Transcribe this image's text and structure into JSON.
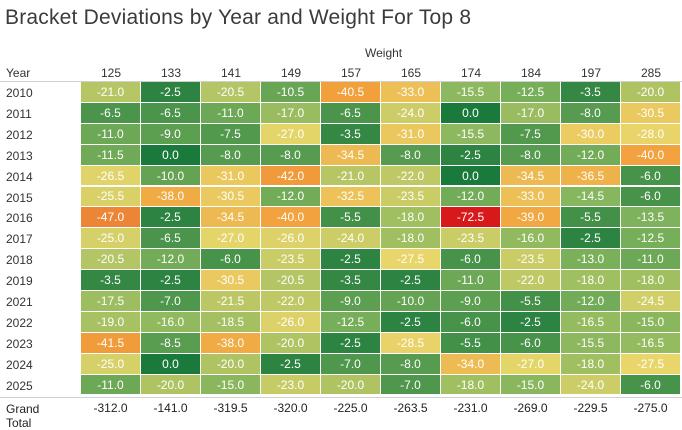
{
  "chart_data": {
    "type": "heatmap",
    "title": "Bracket Deviations by Year and Weight For Top 8",
    "column_group_label": "Weight",
    "row_label": "Year",
    "columns": [
      "125",
      "133",
      "141",
      "149",
      "157",
      "165",
      "174",
      "184",
      "197",
      "285"
    ],
    "rows": [
      "2010",
      "2011",
      "2012",
      "2013",
      "2014",
      "2015",
      "2016",
      "2017",
      "2018",
      "2019",
      "2021",
      "2022",
      "2023",
      "2024",
      "2025"
    ],
    "values": [
      [
        "-21.0",
        "-2.5",
        "-20.5",
        "-10.5",
        "-40.5",
        "-33.0",
        "-15.5",
        "-12.5",
        "-3.5",
        "-20.0"
      ],
      [
        "-6.5",
        "-6.5",
        "-11.0",
        "-17.0",
        "-6.5",
        "-24.0",
        "0.0",
        "-17.0",
        "-8.0",
        "-30.5"
      ],
      [
        "-11.0",
        "-9.0",
        "-7.5",
        "-27.0",
        "-3.5",
        "-31.0",
        "-15.5",
        "-7.5",
        "-30.0",
        "-28.0"
      ],
      [
        "-11.5",
        "0.0",
        "-8.0",
        "-8.0",
        "-34.5",
        "-8.0",
        "-2.5",
        "-8.0",
        "-12.0",
        "-40.0"
      ],
      [
        "-26.5",
        "-10.0",
        "-31.0",
        "-42.0",
        "-21.0",
        "-22.0",
        "0.0",
        "-34.5",
        "-36.5",
        "-6.0"
      ],
      [
        "-25.5",
        "-38.0",
        "-30.5",
        "-12.0",
        "-32.5",
        "-23.5",
        "-12.0",
        "-33.0",
        "-14.5",
        "-6.0"
      ],
      [
        "-47.0",
        "-2.5",
        "-34.5",
        "-40.0",
        "-5.5",
        "-18.0",
        "-72.5",
        "-39.0",
        "-5.5",
        "-13.5"
      ],
      [
        "-25.0",
        "-6.5",
        "-27.0",
        "-26.0",
        "-24.0",
        "-18.0",
        "-23.5",
        "-16.0",
        "-2.5",
        "-12.5"
      ],
      [
        "-20.5",
        "-12.0",
        "-6.0",
        "-23.5",
        "-2.5",
        "-27.5",
        "-6.0",
        "-23.5",
        "-13.0",
        "-11.0"
      ],
      [
        "-3.5",
        "-2.5",
        "-30.5",
        "-20.5",
        "-3.5",
        "-2.5",
        "-11.0",
        "-22.0",
        "-18.0",
        "-18.0"
      ],
      [
        "-17.5",
        "-7.0",
        "-21.5",
        "-22.0",
        "-9.0",
        "-10.0",
        "-9.0",
        "-5.5",
        "-12.0",
        "-24.5"
      ],
      [
        "-19.0",
        "-16.0",
        "-18.5",
        "-26.0",
        "-12.5",
        "-2.5",
        "-6.0",
        "-2.5",
        "-16.5",
        "-15.0"
      ],
      [
        "-41.5",
        "-8.5",
        "-38.0",
        "-20.0",
        "-2.5",
        "-28.5",
        "-5.5",
        "-6.0",
        "-15.5",
        "-16.5"
      ],
      [
        "-25.0",
        "0.0",
        "-20.0",
        "-2.5",
        "-7.0",
        "-8.0",
        "-34.0",
        "-27.0",
        "-18.0",
        "-27.5"
      ],
      [
        "-11.0",
        "-20.0",
        "-15.0",
        "-23.0",
        "-20.0",
        "-7.0",
        "-18.0",
        "-15.0",
        "-24.0",
        "-6.0"
      ]
    ],
    "totals_label": "Grand Total",
    "totals": [
      "-312.0",
      "-141.0",
      "-319.5",
      "-320.0",
      "-225.0",
      "-263.5",
      "-231.0",
      "-269.0",
      "-229.5",
      "-275.0"
    ],
    "color_scale": {
      "low": "#d7191c",
      "mid": "#e8d66a",
      "high": "#1a7a3c",
      "domain": [
        -72.5,
        0
      ]
    }
  }
}
